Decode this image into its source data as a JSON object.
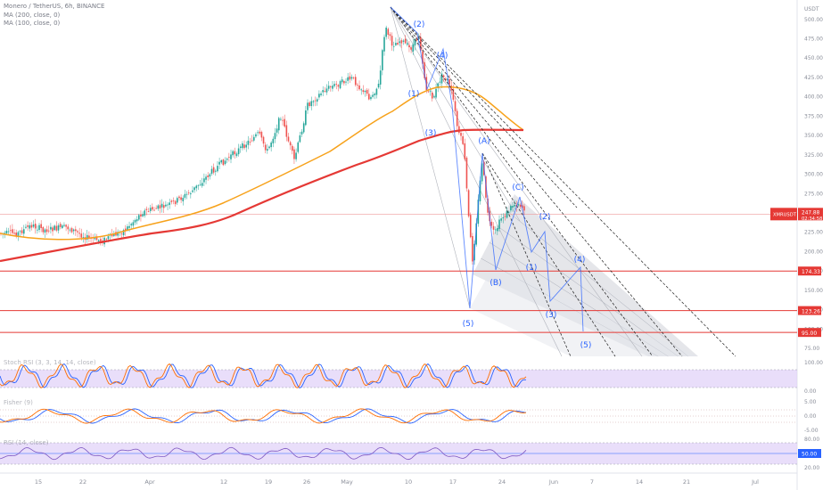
{
  "header": {
    "symbol": "Monero / TetherUS, 6h, BINANCE",
    "ma200": "MA (200, close, 0)",
    "ma100": "MA (100, close, 0)",
    "currency": "USDT"
  },
  "panels": {
    "stoch_label": "Stoch RSI (3, 3, 14, 14, close)",
    "fisher_label": "Fisher (9)",
    "rsi_label": "RSI (14, close)"
  },
  "colors": {
    "candle_up": "#26a69a",
    "candle_down": "#ef5350",
    "ma100": "#f7a21b",
    "ma200": "#e53935",
    "support": "#e53935",
    "wave": "#2962ff",
    "channel_fill": "#cfd1d8",
    "band": "#e1d3f8"
  },
  "chart_data": {
    "type": "candlestick",
    "title": "Monero / TetherUS, 6h, BINANCE",
    "ylabel": "USDT",
    "ylim": [
      55,
      520
    ],
    "y_ticks": [
      "75.00",
      "100.00",
      "125.00",
      "150.00",
      "175.00",
      "200.00",
      "225.00",
      "250.00",
      "275.00",
      "300.00",
      "325.00",
      "350.00",
      "375.00",
      "400.00",
      "425.00",
      "450.00",
      "475.00",
      "500.00"
    ],
    "x_ticks": [
      "15",
      "22",
      "Apr",
      "12",
      "19",
      "26",
      "May",
      "10",
      "17",
      "24",
      "Jun",
      "7",
      "14",
      "21",
      "Jul"
    ],
    "current_price": {
      "label": "XMRUSDT",
      "value": "247.88",
      "countdown": "02:34:58"
    },
    "support_levels": [
      "174.33",
      "123.26",
      "95.00"
    ],
    "wave_labels_top": [
      "(1)",
      "(2)",
      "(3)",
      "(4)",
      "(5)"
    ],
    "wave_labels_abc": [
      "(A)",
      "(B)",
      "(C)"
    ],
    "wave_labels_proj": [
      "(1)",
      "(2)",
      "(3)",
      "(4)",
      "(5)"
    ],
    "series": [
      {
        "name": "MA (100, close, 0)",
        "key": "ma100"
      },
      {
        "name": "MA (200, close, 0)",
        "key": "ma200"
      }
    ]
  },
  "indicators": {
    "stoch_ticks": [
      "100.00",
      "0.00"
    ],
    "fisher_ticks": [
      "5.00",
      "0.00",
      "-5.00"
    ],
    "rsi_ticks": [
      "80.00",
      "50.00",
      "20.00"
    ],
    "rsi_value": "50.00"
  }
}
